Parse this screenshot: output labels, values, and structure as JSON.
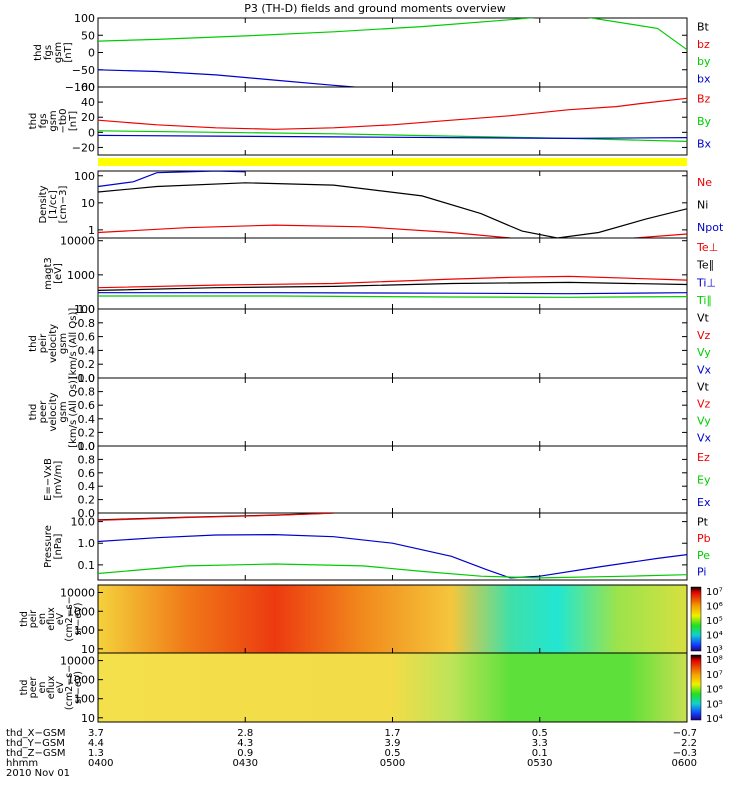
{
  "title": "P3 (TH-D) fields and ground moments overview",
  "colors": {
    "black": "#000000",
    "red": "#ee0000",
    "green": "#00cc00",
    "blue": "#0000cc",
    "yellow": "#ffff00"
  },
  "chart_data": {
    "type": "line",
    "time_ticks": [
      "0400",
      "0430",
      "0500",
      "0530",
      "0600"
    ],
    "time_range": [
      "04:00",
      "06:00"
    ],
    "panels": [
      {
        "id": "fgs",
        "ylabel": [
          "thd",
          "fgs",
          "gsm",
          "[nT]"
        ],
        "ylim": [
          -100,
          100
        ],
        "yscale": "linear",
        "yticks": [
          "100",
          "50",
          "0",
          "−50",
          "−100"
        ],
        "legend": [
          {
            "name": "Bt",
            "color": "black"
          },
          {
            "name": "bz",
            "color": "red"
          },
          {
            "name": "by",
            "color": "green"
          },
          {
            "name": "bx",
            "color": "blue"
          }
        ],
        "series": [
          {
            "name": "by",
            "color": "green",
            "points": [
              [
                0,
                33
              ],
              [
                0.1,
                38
              ],
              [
                0.25,
                48
              ],
              [
                0.4,
                60
              ],
              [
                0.55,
                75
              ],
              [
                0.7,
                95
              ],
              [
                0.8,
                110
              ],
              [
                0.95,
                70
              ],
              [
                1.0,
                8
              ]
            ]
          },
          {
            "name": "bx",
            "color": "blue",
            "points": [
              [
                0,
                -50
              ],
              [
                0.1,
                -55
              ],
              [
                0.2,
                -65
              ],
              [
                0.3,
                -80
              ],
              [
                0.4,
                -95
              ],
              [
                0.45,
                -102
              ]
            ]
          }
        ]
      },
      {
        "id": "fgs_dsl",
        "ylabel": [
          "thd",
          "fgs",
          "gsm",
          "−tb0",
          "[nT]"
        ],
        "ylim": [
          -30,
          60
        ],
        "yscale": "linear",
        "yticks": [
          "60",
          "40",
          "20",
          "0",
          "−20"
        ],
        "legend": [
          {
            "name": "Bz",
            "color": "red"
          },
          {
            "name": "By",
            "color": "green"
          },
          {
            "name": "Bx",
            "color": "blue"
          }
        ],
        "series": [
          {
            "name": "Bz",
            "color": "red",
            "points": [
              [
                0,
                16
              ],
              [
                0.1,
                10
              ],
              [
                0.2,
                6
              ],
              [
                0.3,
                4
              ],
              [
                0.4,
                6
              ],
              [
                0.5,
                10
              ],
              [
                0.6,
                16
              ],
              [
                0.7,
                22
              ],
              [
                0.8,
                30
              ],
              [
                0.88,
                34
              ],
              [
                0.92,
                38
              ],
              [
                1.0,
                45
              ]
            ]
          },
          {
            "name": "By",
            "color": "green",
            "points": [
              [
                0,
                2
              ],
              [
                0.2,
                0
              ],
              [
                0.4,
                -2
              ],
              [
                0.6,
                -5
              ],
              [
                0.8,
                -8
              ],
              [
                0.9,
                -10
              ],
              [
                1.0,
                -12
              ]
            ]
          },
          {
            "name": "Bx",
            "color": "blue",
            "points": [
              [
                0,
                -4
              ],
              [
                0.2,
                -5
              ],
              [
                0.4,
                -6
              ],
              [
                0.6,
                -7
              ],
              [
                0.8,
                -8
              ],
              [
                1.0,
                -7
              ]
            ]
          }
        ]
      },
      {
        "id": "density",
        "ylabel": [
          "Density",
          "[1/cc]",
          "[cm−3]"
        ],
        "ylim": [
          0.5,
          150
        ],
        "yscale": "log",
        "yticks": [
          "100",
          "10",
          "1"
        ],
        "legend": [
          {
            "name": "Ne",
            "color": "red"
          },
          {
            "name": "Ni",
            "color": "black"
          },
          {
            "name": "Npot",
            "color": "blue"
          }
        ],
        "series": [
          {
            "name": "Ni",
            "color": "black",
            "points": [
              [
                0,
                25
              ],
              [
                0.1,
                40
              ],
              [
                0.25,
                55
              ],
              [
                0.4,
                45
              ],
              [
                0.55,
                18
              ],
              [
                0.65,
                4
              ],
              [
                0.72,
                0.9
              ],
              [
                0.78,
                0.5
              ],
              [
                0.85,
                0.8
              ],
              [
                0.93,
                2.5
              ],
              [
                1.0,
                6
              ]
            ]
          },
          {
            "name": "Ne",
            "color": "red",
            "points": [
              [
                0,
                0.8
              ],
              [
                0.15,
                1.2
              ],
              [
                0.3,
                1.5
              ],
              [
                0.45,
                1.3
              ],
              [
                0.6,
                0.8
              ],
              [
                0.7,
                0.5
              ],
              [
                0.8,
                0.45
              ],
              [
                0.9,
                0.48
              ],
              [
                1.0,
                0.7
              ]
            ]
          },
          {
            "name": "Npot",
            "color": "blue",
            "points": [
              [
                0,
                40
              ],
              [
                0.06,
                60
              ],
              [
                0.1,
                130
              ],
              [
                0.2,
                150
              ],
              [
                0.25,
                140
              ]
            ]
          }
        ]
      },
      {
        "id": "temp",
        "ylabel": [
          "magt3",
          "[eV]"
        ],
        "ylim": [
          100,
          12000
        ],
        "yscale": "log",
        "yticks": [
          "10000",
          "1000",
          "100"
        ],
        "legend": [
          {
            "name": "Te⊥",
            "color": "red"
          },
          {
            "name": "Te∥",
            "color": "black"
          },
          {
            "name": "Ti⊥",
            "color": "blue"
          },
          {
            "name": "Ti∥",
            "color": "green"
          }
        ],
        "series": [
          {
            "name": "Te⊥",
            "color": "red",
            "points": [
              [
                0,
                420
              ],
              [
                0.2,
                500
              ],
              [
                0.4,
                560
              ],
              [
                0.6,
                750
              ],
              [
                0.7,
                850
              ],
              [
                0.8,
                900
              ],
              [
                0.9,
                800
              ],
              [
                1.0,
                700
              ]
            ]
          },
          {
            "name": "Te∥",
            "color": "black",
            "points": [
              [
                0,
                350
              ],
              [
                0.2,
                420
              ],
              [
                0.4,
                460
              ],
              [
                0.6,
                560
              ],
              [
                0.8,
                600
              ],
              [
                1.0,
                520
              ]
            ]
          },
          {
            "name": "Ti⊥",
            "color": "blue",
            "points": [
              [
                0,
                300
              ],
              [
                0.3,
                300
              ],
              [
                0.6,
                290
              ],
              [
                0.8,
                280
              ],
              [
                1.0,
                300
              ]
            ]
          },
          {
            "name": "Ti∥",
            "color": "green",
            "points": [
              [
                0,
                240
              ],
              [
                0.3,
                240
              ],
              [
                0.6,
                225
              ],
              [
                0.8,
                220
              ],
              [
                1.0,
                230
              ]
            ]
          }
        ]
      },
      {
        "id": "peir_vel",
        "ylabel": [
          "thd",
          "peir",
          "velocity",
          "gsm",
          "[km/s (All Qs)]"
        ],
        "ylim": [
          0,
          1
        ],
        "yscale": "linear",
        "yticks": [
          "1.0",
          "0.8",
          "0.6",
          "0.4",
          "0.2",
          "0.0"
        ],
        "legend": [
          {
            "name": "Vt",
            "color": "black"
          },
          {
            "name": "Vz",
            "color": "red"
          },
          {
            "name": "Vy",
            "color": "green"
          },
          {
            "name": "Vx",
            "color": "blue"
          }
        ],
        "series": []
      },
      {
        "id": "peer_vel",
        "ylabel": [
          "thd",
          "peer",
          "velocity",
          "gsm",
          "[km/s (All Qs)]"
        ],
        "ylim": [
          0,
          1
        ],
        "yscale": "linear",
        "yticks": [
          "1.0",
          "0.8",
          "0.6",
          "0.4",
          "0.2",
          "0.0"
        ],
        "legend": [
          {
            "name": "Vt",
            "color": "black"
          },
          {
            "name": "Vz",
            "color": "red"
          },
          {
            "name": "Vy",
            "color": "green"
          },
          {
            "name": "Vx",
            "color": "blue"
          }
        ],
        "series": []
      },
      {
        "id": "efield",
        "ylabel": [
          "E=−VxB",
          "[mV/m]"
        ],
        "ylim": [
          0,
          1
        ],
        "yscale": "linear",
        "yticks": [
          "1.0",
          "0.8",
          "0.6",
          "0.4",
          "0.2",
          "0.0"
        ],
        "legend": [
          {
            "name": "Ez",
            "color": "red"
          },
          {
            "name": "Ey",
            "color": "green"
          },
          {
            "name": "Ex",
            "color": "blue"
          }
        ],
        "series": []
      },
      {
        "id": "pressure",
        "ylabel": [
          "Pressure",
          "[nPa]"
        ],
        "ylim": [
          0.02,
          25
        ],
        "yscale": "log",
        "yticks": [
          "10.0",
          "1.0",
          "0.1"
        ],
        "legend": [
          {
            "name": "Pt",
            "color": "black"
          },
          {
            "name": "Pb",
            "color": "red"
          },
          {
            "name": "Pe",
            "color": "green"
          },
          {
            "name": "Pi",
            "color": "blue"
          }
        ],
        "series": [
          {
            "name": "Pt",
            "color": "black",
            "points": [
              [
                0,
                12
              ],
              [
                0.15,
                16
              ],
              [
                0.3,
                20
              ],
              [
                0.4,
                25
              ]
            ]
          },
          {
            "name": "Pb",
            "color": "red",
            "points": [
              [
                0,
                11.5
              ],
              [
                0.15,
                15.5
              ],
              [
                0.3,
                19.5
              ],
              [
                0.4,
                24.5
              ]
            ]
          },
          {
            "name": "Pi",
            "color": "blue",
            "points": [
              [
                0,
                1.2
              ],
              [
                0.1,
                1.8
              ],
              [
                0.2,
                2.4
              ],
              [
                0.3,
                2.5
              ],
              [
                0.4,
                2.0
              ],
              [
                0.5,
                1.0
              ],
              [
                0.6,
                0.25
              ],
              [
                0.66,
                0.06
              ],
              [
                0.7,
                0.025
              ],
              [
                0.75,
                0.03
              ],
              [
                0.85,
                0.08
              ],
              [
                0.95,
                0.2
              ],
              [
                1.0,
                0.3
              ]
            ]
          },
          {
            "name": "Pe",
            "color": "green",
            "points": [
              [
                0,
                0.04
              ],
              [
                0.15,
                0.09
              ],
              [
                0.3,
                0.11
              ],
              [
                0.45,
                0.09
              ],
              [
                0.55,
                0.05
              ],
              [
                0.65,
                0.03
              ],
              [
                0.75,
                0.025
              ],
              [
                0.9,
                0.03
              ],
              [
                1.0,
                0.035
              ]
            ]
          }
        ]
      }
    ],
    "spectrograms": [
      {
        "id": "peir_en",
        "ylabel": [
          "thd",
          "peir",
          "en",
          "eflux",
          "eV",
          "(cm2−s−",
          "sr−eV)"
        ],
        "yticks": [
          "10000",
          "1000",
          "100",
          "10"
        ],
        "colorbar_ticks": [
          "10⁷",
          "10⁶",
          "10⁵",
          "10⁴",
          "10³"
        ]
      },
      {
        "id": "peer_en",
        "ylabel": [
          "thd",
          "peer",
          "en",
          "eflux",
          "eV",
          "(cm2−s−",
          "sr−eV)"
        ],
        "yticks": [
          "10000",
          "1000",
          "100",
          "10"
        ],
        "colorbar_ticks": [
          "10⁸",
          "10⁷",
          "10⁶",
          "10⁵",
          "10⁴"
        ]
      }
    ],
    "ephemeris": {
      "labels": [
        "thd_X−GSM",
        "thd_Y−GSM",
        "thd_Z−GSM",
        "hhmm",
        "2010 Nov 01"
      ],
      "rows": [
        [
          "3.7",
          "2.8",
          "1.7",
          "0.5",
          "−0.7"
        ],
        [
          "4.4",
          "4.3",
          "3.9",
          "3.3",
          "2.2"
        ],
        [
          "1.3",
          "0.9",
          "0.5",
          "0.1",
          "−0.3"
        ],
        [
          "0400",
          "0430",
          "0500",
          "0530",
          "0600"
        ]
      ]
    }
  }
}
